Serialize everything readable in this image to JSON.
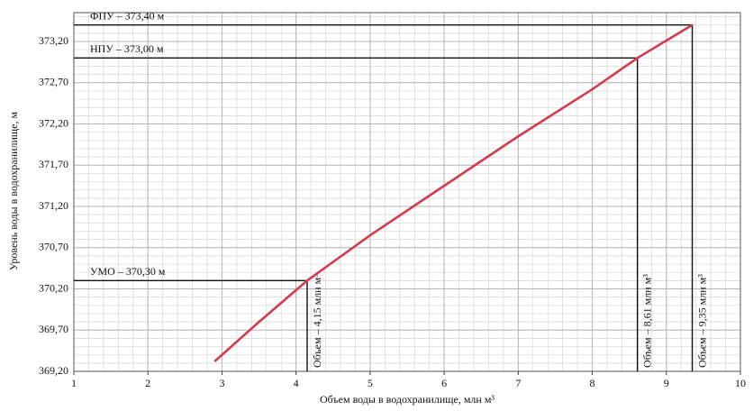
{
  "chart_data": {
    "type": "line",
    "x_label": "Объем воды в водохранилище, млн м³",
    "y_label": "Уровень воды в водохранилище, м",
    "x": [
      2.9,
      3.5,
      4.15,
      5,
      6,
      7,
      8,
      8.61,
      9.35
    ],
    "series": [
      {
        "color": "#d63a4e",
        "values": [
          369.32,
          369.8,
          370.3,
          370.85,
          371.45,
          372.05,
          372.62,
          373.0,
          373.4
        ]
      }
    ],
    "xlim": [
      1,
      10
    ],
    "xticks": [
      1,
      2,
      3,
      4,
      5,
      6,
      7,
      8,
      9,
      10
    ],
    "ylim": [
      369.2,
      373.55
    ],
    "yticks": [
      {
        "value": 369.2,
        "label": "369,20"
      },
      {
        "value": 369.7,
        "label": "369,70"
      },
      {
        "value": 370.2,
        "label": "370,20"
      },
      {
        "value": 370.7,
        "label": "370,70"
      },
      {
        "value": 371.2,
        "label": "371,20"
      },
      {
        "value": 371.7,
        "label": "371,70"
      },
      {
        "value": 372.2,
        "label": "372,20"
      },
      {
        "value": 372.7,
        "label": "372,70"
      },
      {
        "value": 373.2,
        "label": "373,20"
      }
    ],
    "grid": true,
    "reference_points": [
      {
        "x": 9.35,
        "y": 373.4,
        "level_label": "ФПУ – 373,40 м",
        "volume_label": "Объем – 9,35 млн м³"
      },
      {
        "x": 8.61,
        "y": 373.0,
        "level_label": "НПУ – 373,00 м",
        "volume_label": "Объем – 8,61 млн м³"
      },
      {
        "x": 4.15,
        "y": 370.3,
        "level_label": "УМО – 370,30 м",
        "volume_label": "Объем – 4,15 млн м³"
      }
    ]
  }
}
